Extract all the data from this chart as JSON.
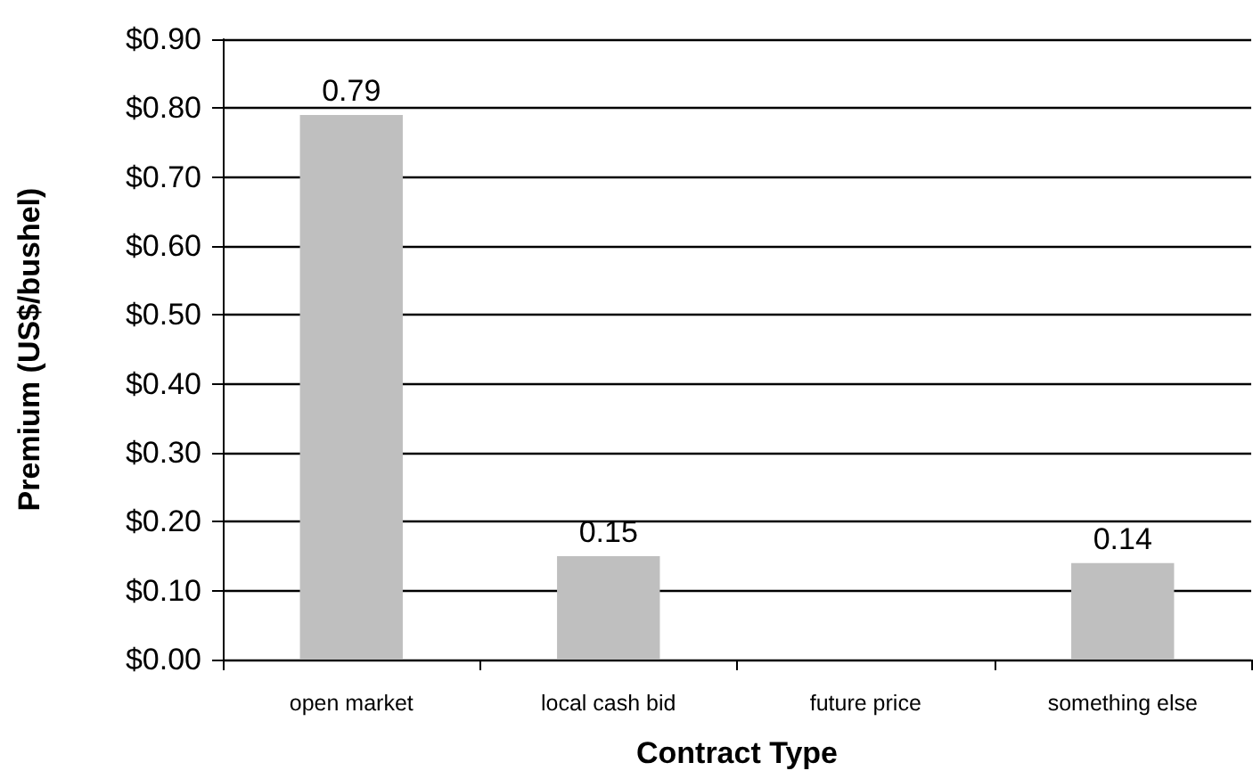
{
  "chart_data": {
    "type": "bar",
    "xlabel": "Contract Type",
    "ylabel": "Premium (US$/bushel)",
    "categories": [
      "open market",
      "local cash bid",
      "future price",
      "something else"
    ],
    "values": [
      0.79,
      0.15,
      null,
      0.14
    ],
    "color": "#bfbfbf",
    "data_labels": true,
    "ylim": [
      0,
      0.9
    ],
    "yticks": [
      {
        "value": 0,
        "label": "$0.00"
      },
      {
        "value": 0.1,
        "label": "$0.10"
      },
      {
        "value": 0.2,
        "label": "$0.20"
      },
      {
        "value": 0.3,
        "label": "$0.30"
      },
      {
        "value": 0.4,
        "label": "$0.40"
      },
      {
        "value": 0.5,
        "label": "$0.50"
      },
      {
        "value": 0.6,
        "label": "$0.60"
      },
      {
        "value": 0.7,
        "label": "$0.70"
      },
      {
        "value": 0.8,
        "label": "$0.80"
      },
      {
        "value": 0.9,
        "label": "$0.90"
      }
    ],
    "grid": "y"
  }
}
